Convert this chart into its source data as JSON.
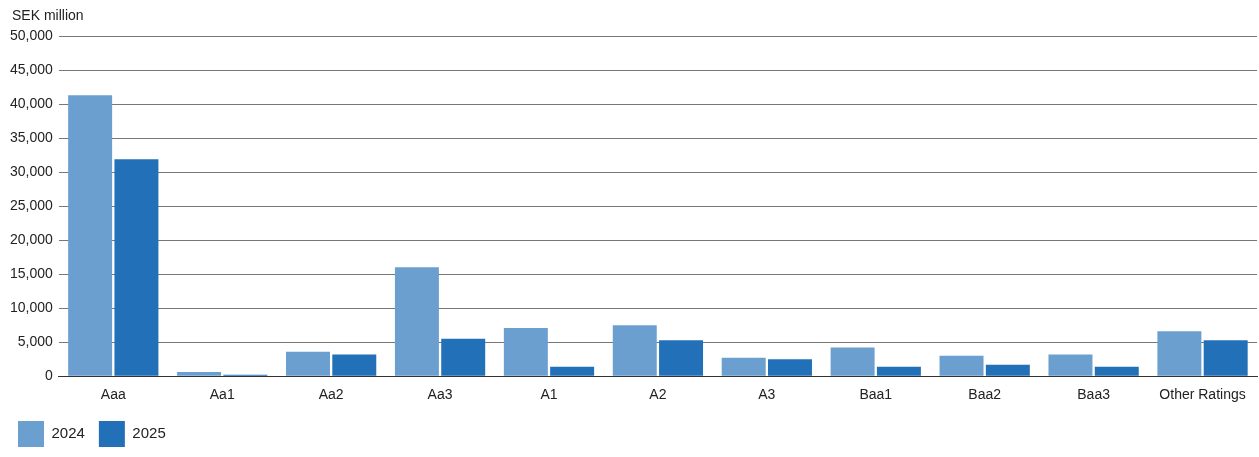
{
  "chart_data": {
    "type": "bar",
    "ylabel": "SEK million",
    "categories": [
      "Aaa",
      "Aa1",
      "Aa2",
      "Aa3",
      "A1",
      "A2",
      "A3",
      "Baa1",
      "Baa2",
      "Baa3",
      "Other Ratings"
    ],
    "series": [
      {
        "name": "2024",
        "color": "#6a9fcf",
        "values": [
          41300,
          600,
          3600,
          16000,
          7100,
          7500,
          2700,
          4200,
          3000,
          3200,
          6600
        ]
      },
      {
        "name": "2025",
        "color": "#2271b8",
        "values": [
          31900,
          200,
          3200,
          5500,
          1400,
          5300,
          2500,
          1400,
          1700,
          1400,
          5300
        ]
      }
    ],
    "ylim": [
      0,
      50000
    ],
    "yticks": [
      {
        "value": 0,
        "label": "0"
      },
      {
        "value": 5000,
        "label": "5,000"
      },
      {
        "value": 10000,
        "label": "10,000"
      },
      {
        "value": 15000,
        "label": "15,000"
      },
      {
        "value": 20000,
        "label": "20,000"
      },
      {
        "value": 25000,
        "label": "25,000"
      },
      {
        "value": 30000,
        "label": "30,000"
      },
      {
        "value": 35000,
        "label": "35,000"
      },
      {
        "value": 40000,
        "label": "40,000"
      },
      {
        "value": 45000,
        "label": "45,000"
      },
      {
        "value": 50000,
        "label": "50,000"
      }
    ],
    "grid": "y",
    "legend": "bottom left"
  }
}
